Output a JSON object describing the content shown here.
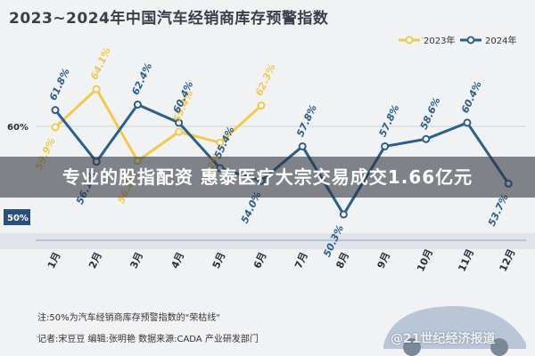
{
  "title": "2023~2024年中国汽车经销商库存预警指数",
  "banner": "专业的股指配资 惠泰医疗大宗交易成交1.66亿元",
  "note": "注:50%为汽车经销商库存预警指数的\"荣枯线\"",
  "credit": "记者:宋豆豆   编辑:张明艳   数据来源:CADA 产业研发部门",
  "watermark": "@21世纪经济报道",
  "colors": {
    "y2023": "#f2c94c",
    "y2024": "#2c5f8a",
    "band50": "#2a4f7f"
  },
  "chart_data": {
    "type": "line",
    "categories": [
      "1月",
      "2月",
      "3月",
      "4月",
      "5月",
      "6月",
      "7月",
      "8月",
      "9月",
      "10月",
      "11月",
      "12月"
    ],
    "ylim": [
      45,
      70
    ],
    "yticks": [
      {
        "value": 60,
        "label": "60%"
      },
      {
        "value": 50,
        "label": "50%"
      }
    ],
    "legend_position": "top-right",
    "series": [
      {
        "name": "2023年",
        "values": [
          59.9,
          64.1,
          56.2,
          59.4,
          58.2,
          62.3,
          null,
          null,
          null,
          null,
          null,
          null
        ],
        "labels": [
          "59.9%",
          "64.1%",
          "56.2%",
          "59.4%",
          "58.2%",
          "62.3%"
        ]
      },
      {
        "name": "2024年",
        "values": [
          61.8,
          56.1,
          62.4,
          60.4,
          55.4,
          54.0,
          57.8,
          50.3,
          57.8,
          58.6,
          60.4,
          53.7
        ],
        "labels": [
          "61.8%",
          "56.1%",
          "62.4%",
          "60.4%",
          "55.4%",
          "54.0%",
          "57.8%",
          "50.3%",
          "57.8%",
          "58.6%",
          "60.4%",
          "53.7%"
        ]
      }
    ]
  }
}
